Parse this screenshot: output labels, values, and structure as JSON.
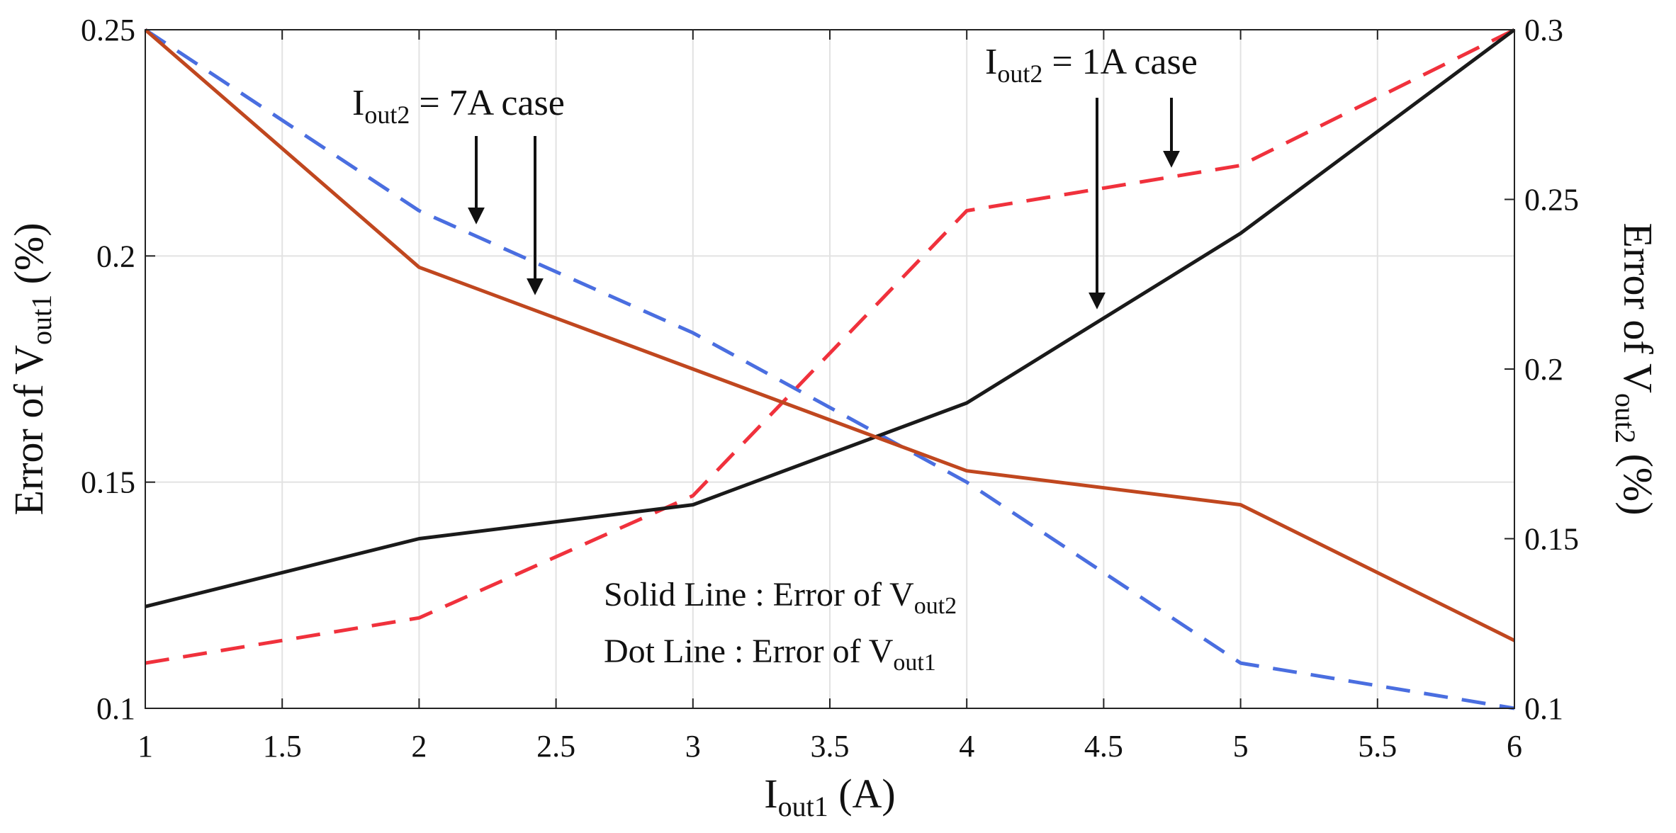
{
  "chart_data": {
    "type": "line",
    "x": [
      1,
      2,
      3,
      4,
      5,
      6
    ],
    "xlim": [
      1,
      6
    ],
    "ylim_left": [
      0.1,
      0.25
    ],
    "ylim_right": [
      0.1,
      0.3
    ],
    "x_ticks": [
      "1",
      "1.5",
      "2",
      "2.5",
      "3",
      "3.5",
      "4",
      "4.5",
      "5",
      "5.5",
      "6"
    ],
    "y_left_ticks": [
      "0.1",
      "0.15",
      "0.2",
      "0.25"
    ],
    "y_right_ticks": [
      "0.1",
      "0.15",
      "0.2",
      "0.25",
      "0.3"
    ],
    "grid": true,
    "xlabel": {
      "main": "I",
      "sub": "out1",
      "suffix": " (A)"
    },
    "ylabel_left": {
      "prefix": "Error of V",
      "sub": "out1",
      "suffix": " (%)"
    },
    "ylabel_right": {
      "prefix": "Error of V",
      "sub": "out2",
      "suffix": " (%)"
    },
    "series": [
      {
        "name": "Error of Vout2, Iout2 = 7A",
        "axis": "right",
        "style": "solid",
        "color": "#c0471f",
        "values": [
          0.3,
          0.23,
          0.2,
          0.17,
          0.16,
          0.12
        ]
      },
      {
        "name": "Error of Vout2, Iout2 = 1A",
        "axis": "right",
        "style": "solid",
        "color": "#1a1a1a",
        "values": [
          0.13,
          0.15,
          0.16,
          0.19,
          0.24,
          0.3
        ]
      },
      {
        "name": "Error of Vout1, Iout2 = 7A",
        "axis": "left",
        "style": "dashed",
        "color": "#4a6ee0",
        "values": [
          0.25,
          0.21,
          0.183,
          0.15,
          0.11,
          0.1
        ]
      },
      {
        "name": "Error of Vout1, Iout2 = 1A",
        "axis": "left",
        "style": "dashed",
        "color": "#f0313c",
        "values": [
          0.11,
          0.12,
          0.147,
          0.21,
          0.22,
          0.25
        ]
      }
    ],
    "annotations": [
      {
        "main": "I",
        "sub": "out2",
        "suffix": " = 7A case"
      },
      {
        "main": "I",
        "sub": "out2",
        "suffix": " = 1A case"
      }
    ],
    "legend": [
      {
        "prefix": "Solid Line : Error of V",
        "sub": "out2"
      },
      {
        "prefix": "Dot Line : Error of V",
        "sub": "out1"
      }
    ]
  }
}
